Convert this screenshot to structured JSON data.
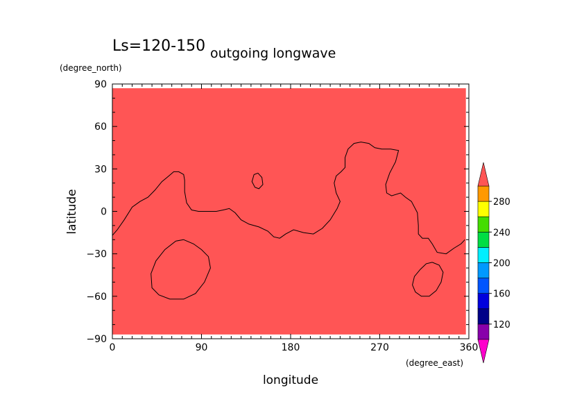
{
  "chart_data": {
    "type": "heatmap",
    "title_left": "Ls=120-150",
    "title_right": "outgoing longwave",
    "xlabel": "longitude",
    "ylabel": "latitude",
    "x_units": "(degree_east)",
    "y_units": "(degree_north)",
    "xlim": [
      0,
      360
    ],
    "ylim": [
      -90,
      90
    ],
    "x_ticks": [
      0,
      90,
      180,
      270,
      360
    ],
    "y_ticks": [
      90,
      60,
      30,
      0,
      -30,
      -60,
      -90
    ],
    "field_color": "#ff5555",
    "colorbar": {
      "levels": [
        100,
        120,
        140,
        160,
        180,
        200,
        220,
        240,
        260,
        280,
        300
      ],
      "tick_labels": [
        120,
        160,
        200,
        240,
        280
      ],
      "colors": [
        "#8800aa",
        "#000088",
        "#0000dd",
        "#0055ff",
        "#0099ff",
        "#00eeff",
        "#00dd44",
        "#44dd00",
        "#ffff00",
        "#ff9900",
        "#ff4400"
      ],
      "under_color": "#ff00cc",
      "over_color": "#ff5555"
    },
    "contours": [
      {
        "name": "main",
        "points": [
          [
            0,
            -17
          ],
          [
            5,
            -13
          ],
          [
            12,
            -6
          ],
          [
            20,
            3
          ],
          [
            28,
            7
          ],
          [
            36,
            10
          ],
          [
            43,
            15
          ],
          [
            50,
            21
          ],
          [
            57,
            25
          ],
          [
            62,
            28
          ],
          [
            67,
            28
          ],
          [
            72,
            26
          ],
          [
            73,
            22
          ],
          [
            73,
            14
          ],
          [
            75,
            6
          ],
          [
            80,
            1
          ],
          [
            87,
            0
          ],
          [
            96,
            0
          ],
          [
            105,
            0
          ],
          [
            112,
            1
          ],
          [
            118,
            2
          ],
          [
            124,
            -1
          ],
          [
            130,
            -6
          ],
          [
            138,
            -9
          ],
          [
            148,
            -11
          ],
          [
            157,
            -14
          ],
          [
            163,
            -18
          ],
          [
            169,
            -19
          ],
          [
            175,
            -16
          ],
          [
            183,
            -13
          ],
          [
            193,
            -15
          ],
          [
            203,
            -16
          ],
          [
            212,
            -12
          ],
          [
            220,
            -6
          ],
          [
            227,
            2
          ],
          [
            230,
            7
          ],
          [
            226,
            13
          ],
          [
            224,
            20
          ],
          [
            226,
            25
          ],
          [
            231,
            28
          ],
          [
            235,
            31
          ],
          [
            235,
            38
          ],
          [
            238,
            44
          ],
          [
            244,
            48
          ],
          [
            251,
            49
          ],
          [
            259,
            48
          ],
          [
            265,
            45
          ],
          [
            272,
            44
          ],
          [
            281,
            44
          ],
          [
            289,
            43
          ],
          [
            286,
            35
          ],
          [
            280,
            27
          ],
          [
            276,
            19
          ],
          [
            277,
            13
          ],
          [
            282,
            11
          ],
          [
            291,
            13
          ],
          [
            296,
            10
          ],
          [
            302,
            7
          ],
          [
            308,
            -1
          ],
          [
            309,
            -10
          ],
          [
            309,
            -16
          ],
          [
            313,
            -19
          ],
          [
            319,
            -19
          ],
          [
            323,
            -23
          ],
          [
            328,
            -29
          ],
          [
            337,
            -30
          ],
          [
            345,
            -26
          ],
          [
            352,
            -23
          ],
          [
            356,
            -20
          ]
        ]
      },
      {
        "name": "island",
        "points": [
          [
            143,
            26
          ],
          [
            147,
            27
          ],
          [
            151,
            24
          ],
          [
            152,
            19
          ],
          [
            148,
            16
          ],
          [
            144,
            17
          ],
          [
            141,
            21
          ],
          [
            143,
            26
          ]
        ]
      },
      {
        "name": "basin-west",
        "points": [
          [
            72,
            -20
          ],
          [
            64,
            -21
          ],
          [
            53,
            -27
          ],
          [
            44,
            -35
          ],
          [
            39,
            -44
          ],
          [
            40,
            -54
          ],
          [
            47,
            -59
          ],
          [
            58,
            -62
          ],
          [
            72,
            -62
          ],
          [
            84,
            -58
          ],
          [
            93,
            -50
          ],
          [
            99,
            -40
          ],
          [
            97,
            -32
          ],
          [
            90,
            -27
          ],
          [
            82,
            -23
          ],
          [
            72,
            -20
          ]
        ]
      },
      {
        "name": "basin-east",
        "points": [
          [
            323,
            -36
          ],
          [
            317,
            -37
          ],
          [
            311,
            -41
          ],
          [
            305,
            -46
          ],
          [
            303,
            -52
          ],
          [
            306,
            -57
          ],
          [
            312,
            -60
          ],
          [
            320,
            -60
          ],
          [
            327,
            -56
          ],
          [
            332,
            -50
          ],
          [
            334,
            -43
          ],
          [
            330,
            -38
          ],
          [
            323,
            -36
          ]
        ]
      }
    ]
  }
}
